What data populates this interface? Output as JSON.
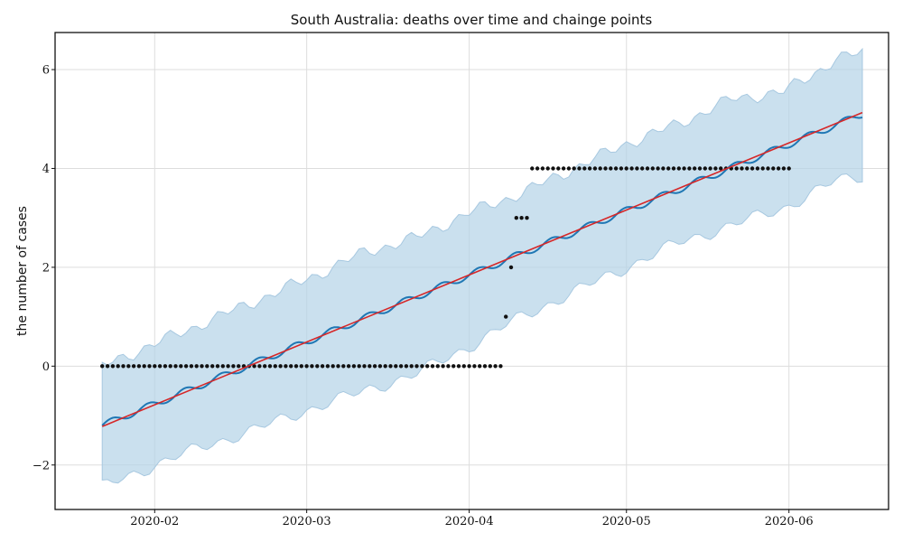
{
  "chart_data": {
    "type": "line",
    "title": "South Australia: deaths over time and chainge points",
    "xlabel": "",
    "ylabel": "the number of cases",
    "x_tick_labels": [
      "2020-02",
      "2020-03",
      "2020-04",
      "2020-05",
      "2020-06"
    ],
    "y_tick_labels": [
      "−2",
      "0",
      "2",
      "4",
      "6"
    ],
    "y_ticks": [
      -2,
      0,
      2,
      4,
      6
    ],
    "xlim": [
      "2020-01-13",
      "2020-06-20"
    ],
    "ylim": [
      -2.9,
      6.75
    ],
    "grid": true,
    "legend": "none",
    "colors": {
      "forecast": "#1f77b4",
      "trend": "#d62728",
      "band": "#b4d3e7",
      "band_edge": "#a7c8e0",
      "observed": "#111111",
      "grid": "#dddddd"
    },
    "forecast": {
      "start_date": "2020-01-22",
      "end_date": "2020-06-15",
      "start_value": -1.2,
      "end_value": 5.1,
      "weekly_amplitude": 0.07
    },
    "trend": {
      "start_date": "2020-01-22",
      "end_date": "2020-06-15",
      "start_value": -1.22,
      "end_value": 5.13
    },
    "uncertainty_band": {
      "x": [
        "2020-01-22",
        "2020-02-01",
        "2020-02-11",
        "2020-02-21",
        "2020-03-02",
        "2020-03-12",
        "2020-03-22",
        "2020-04-01",
        "2020-04-11",
        "2020-04-21",
        "2020-05-01",
        "2020-05-11",
        "2020-05-21",
        "2020-05-31",
        "2020-06-10",
        "2020-06-15"
      ],
      "upper": [
        0.0,
        0.45,
        0.9,
        1.35,
        1.8,
        2.3,
        2.6,
        3.1,
        3.5,
        4.0,
        4.5,
        4.9,
        5.4,
        5.55,
        6.2,
        6.35
      ],
      "lower": [
        -2.45,
        -2.0,
        -1.6,
        -1.25,
        -0.85,
        -0.5,
        -0.15,
        0.4,
        1.0,
        1.5,
        2.0,
        2.5,
        2.85,
        3.2,
        3.75,
        3.85
      ]
    },
    "observed": {
      "segments": [
        {
          "start": "2020-01-22",
          "end": "2020-04-07",
          "value": 0
        },
        {
          "start": "2020-04-08",
          "end": "2020-04-08",
          "value": 1
        },
        {
          "start": "2020-04-09",
          "end": "2020-04-09",
          "value": 2
        },
        {
          "start": "2020-04-10",
          "end": "2020-04-12",
          "value": 3
        },
        {
          "start": "2020-04-13",
          "end": "2020-06-01",
          "value": 4
        }
      ]
    }
  }
}
